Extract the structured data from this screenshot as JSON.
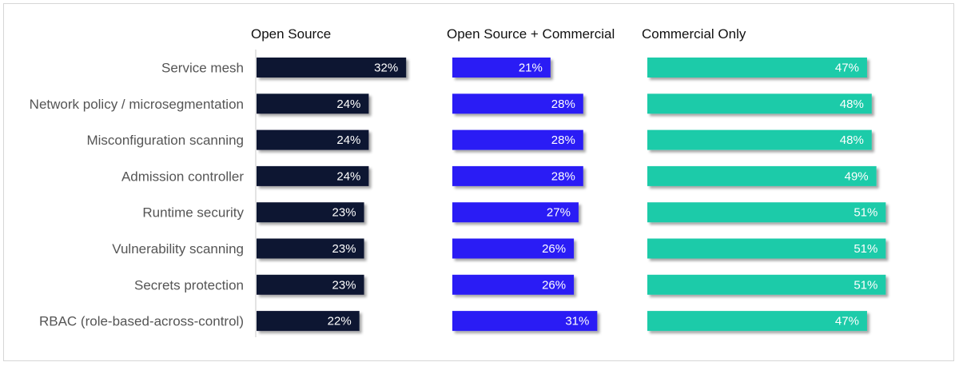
{
  "chart_data": {
    "type": "bar",
    "orientation": "horizontal",
    "categories": [
      "Service mesh",
      "Network policy / microsegmentation",
      "Misconfiguration scanning",
      "Admission controller",
      "Runtime security",
      "Vulnerability scanning",
      "Secrets protection",
      "RBAC (role-based-across-control)"
    ],
    "series": [
      {
        "name": "Open Source",
        "color": "#0d1333",
        "values": [
          32,
          24,
          24,
          24,
          23,
          23,
          23,
          22
        ]
      },
      {
        "name": "Open Source + Commercial",
        "color": "#2b1ef5",
        "values": [
          21,
          28,
          28,
          28,
          27,
          26,
          26,
          31
        ]
      },
      {
        "name": "Commercial Only",
        "color": "#1ecba9",
        "values": [
          47,
          48,
          48,
          49,
          51,
          51,
          51,
          47
        ]
      }
    ],
    "value_suffix": "%",
    "xlim": [
      0,
      51
    ],
    "grid": false,
    "legend": "none"
  }
}
